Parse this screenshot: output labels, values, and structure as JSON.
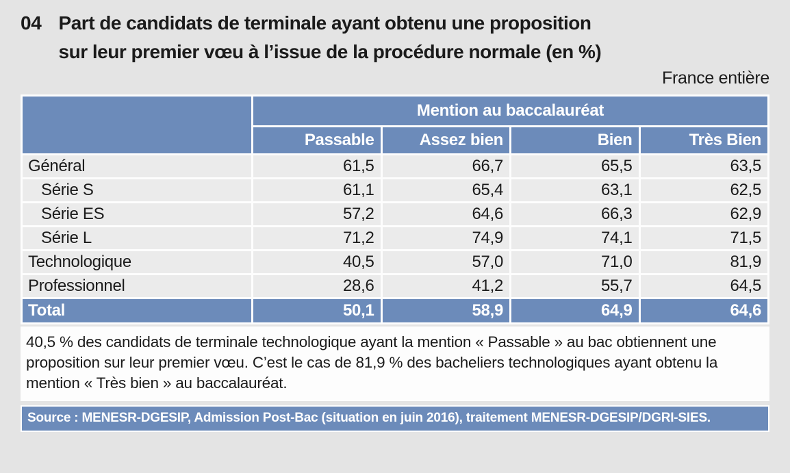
{
  "figure": {
    "number": "04",
    "title_lines": [
      "Part de candidats de terminale ayant obtenu une proposition",
      "sur leur premier vœu à l’issue de la procédure normale (en %)"
    ],
    "scope": "France entière"
  },
  "table": {
    "group_header": "Mention au baccalauréat",
    "columns": [
      "Passable",
      "Assez bien",
      "Bien",
      "Très Bien"
    ],
    "rows": [
      {
        "label": "Général",
        "values": [
          "61,5",
          "66,7",
          "65,5",
          "63,5"
        ]
      },
      {
        "label": "Série S",
        "values": [
          "61,1",
          "65,4",
          "63,1",
          "62,5"
        ]
      },
      {
        "label": "Série ES",
        "values": [
          "57,2",
          "64,6",
          "66,3",
          "62,9"
        ]
      },
      {
        "label": "Série L",
        "values": [
          "71,2",
          "74,9",
          "74,1",
          "71,5"
        ]
      },
      {
        "label": "Technologique",
        "values": [
          "40,5",
          "57,0",
          "71,0",
          "81,9"
        ]
      },
      {
        "label": "Professionnel",
        "values": [
          "28,6",
          "41,2",
          "55,7",
          "64,5"
        ]
      }
    ],
    "total": {
      "label": "Total",
      "values": [
        "50,1",
        "58,9",
        "64,9",
        "64,6"
      ]
    }
  },
  "note": "40,5 % des candidats de terminale technologique ayant la mention « Passable » au bac obtiennent une proposition sur leur premier vœu. C’est le cas de 81,9 % des bacheliers technologiques ayant obtenu la mention « Très bien » au baccalauréat.",
  "source": "Source : MENESR-DGESIP, Admission Post-Bac (situation en juin 2016), traitement MENESR-DGESIP/DGRI-SIES.",
  "colors": {
    "accent_blue": "#6c8bba",
    "row_gray": "#ebebeb",
    "page_bg": "#e4e4e4",
    "panel_white": "#fdfdfd"
  },
  "chart_data": {
    "type": "table",
    "title": "Part de candidats de terminale ayant obtenu une proposition sur leur premier vœu à l’issue de la procédure normale (en %)",
    "figure_number": "04",
    "scope": "France entière",
    "column_group": "Mention au baccalauréat",
    "columns": [
      "Passable",
      "Assez bien",
      "Bien",
      "Très Bien"
    ],
    "series": [
      {
        "name": "Général",
        "values": [
          61.5,
          66.7,
          65.5,
          63.5
        ]
      },
      {
        "name": "Série S",
        "values": [
          61.1,
          65.4,
          63.1,
          62.5
        ]
      },
      {
        "name": "Série ES",
        "values": [
          57.2,
          64.6,
          66.3,
          62.9
        ]
      },
      {
        "name": "Série L",
        "values": [
          71.2,
          74.9,
          74.1,
          71.5
        ]
      },
      {
        "name": "Technologique",
        "values": [
          40.5,
          57.0,
          71.0,
          81.9
        ]
      },
      {
        "name": "Professionnel",
        "values": [
          28.6,
          41.2,
          55.7,
          64.5
        ]
      },
      {
        "name": "Total",
        "values": [
          50.1,
          58.9,
          64.9,
          64.6
        ]
      }
    ]
  }
}
